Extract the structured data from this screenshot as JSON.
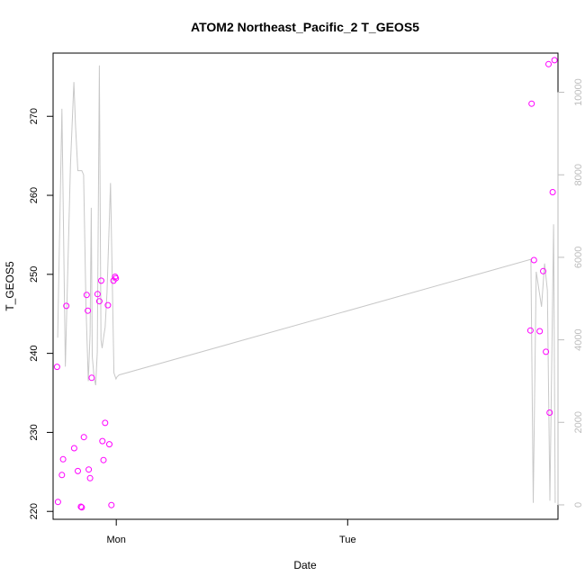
{
  "chart_data": {
    "type": "scatter",
    "title": "ATOM2 Northeast_Pacific_2 T_GEOS5",
    "xlabel": "Date",
    "ylabel": "T_GEOS5",
    "x_axis": {
      "unit": "day",
      "range": [
        -0.273,
        1.909
      ],
      "ticks": [
        {
          "value": 0,
          "label": "Mon"
        },
        {
          "value": 1,
          "label": "Tue"
        }
      ]
    },
    "y_axis": {
      "range": [
        219,
        278
      ],
      "ticks": [
        220,
        230,
        240,
        250,
        260,
        270
      ]
    },
    "y2_axis": {
      "range": [
        -350,
        10950
      ],
      "ticks": [
        0,
        2000,
        4000,
        6000,
        8000,
        10000
      ],
      "color": "#bdbdbd"
    },
    "grid": false,
    "series": [
      {
        "kind": "points",
        "axis": "left",
        "color": "#ff00ff",
        "x": [
          -0.256,
          -0.252,
          -0.235,
          -0.23,
          -0.216,
          -0.182,
          -0.166,
          -0.153,
          -0.149,
          -0.14,
          -0.128,
          -0.123,
          -0.119,
          -0.113,
          -0.106,
          -0.081,
          -0.073,
          -0.065,
          -0.06,
          -0.055,
          -0.048,
          -0.036,
          -0.03,
          -0.021,
          -0.012,
          -0.005,
          -0.002,
          1.79,
          1.795,
          1.805,
          1.83,
          1.845,
          1.857,
          1.868,
          1.873,
          1.886,
          1.894
        ],
        "y": [
          238.3,
          221.2,
          224.6,
          226.6,
          246.0,
          228.0,
          225.1,
          220.6,
          220.5,
          229.4,
          247.4,
          245.4,
          225.3,
          224.2,
          236.9,
          247.5,
          246.6,
          249.2,
          228.9,
          226.5,
          231.2,
          246.1,
          228.5,
          220.8,
          249.2,
          249.7,
          249.5,
          242.9,
          271.6,
          251.8,
          242.8,
          250.4,
          240.2,
          276.6,
          232.5,
          260.4,
          277.1
        ]
      },
      {
        "kind": "line",
        "axis": "right",
        "color": "#c8c8c8",
        "x": [
          -0.253,
          -0.235,
          -0.22,
          -0.198,
          -0.183,
          -0.176,
          -0.166,
          -0.149,
          -0.141,
          -0.131,
          -0.121,
          -0.113,
          -0.108,
          -0.104,
          -0.096,
          -0.089,
          -0.082,
          -0.073,
          -0.066,
          -0.061,
          -0.055,
          -0.048,
          -0.04,
          -0.025,
          -0.01,
          -0.001,
          0.003,
          0.012,
          1.792,
          1.802,
          1.815,
          1.838,
          1.851,
          1.863,
          1.874,
          1.89,
          1.897
        ],
        "y": [
          4050,
          9600,
          3350,
          8250,
          10250,
          9200,
          8100,
          8100,
          8000,
          4850,
          3000,
          4150,
          7200,
          3600,
          3100,
          2900,
          3700,
          10650,
          4000,
          3800,
          4050,
          4300,
          5150,
          7800,
          3200,
          3050,
          3100,
          3150,
          5950,
          50,
          5650,
          4800,
          5850,
          5200,
          100,
          6800,
          50
        ]
      }
    ]
  }
}
